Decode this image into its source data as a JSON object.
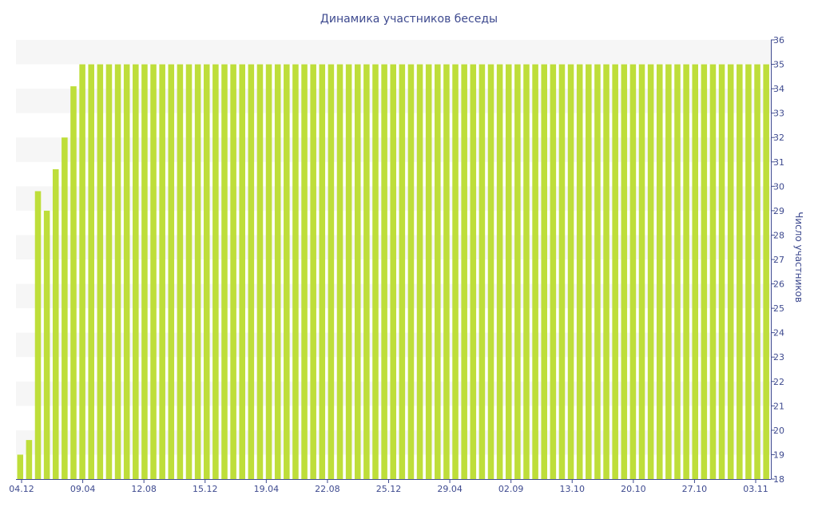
{
  "chart_data": {
    "type": "bar",
    "title": "Динамика участников беседы",
    "xlabel": "",
    "ylabel": "Число участников",
    "ylim": [
      18,
      36
    ],
    "y_ticks": [
      18,
      19,
      20,
      21,
      22,
      23,
      24,
      25,
      26,
      27,
      28,
      29,
      30,
      31,
      32,
      33,
      34,
      35,
      36
    ],
    "x_tick_labels": [
      "04.12",
      "09.04",
      "12.08",
      "15.12",
      "19.04",
      "22.08",
      "25.12",
      "29.04",
      "02.09",
      "13.10",
      "20.10",
      "27.10",
      "03.11"
    ],
    "y_axis_position": "right",
    "grid": "alternating horizontal bands",
    "bar_color": "#bede3a",
    "band_color": "#f6f6f6",
    "values": [
      19,
      19.6,
      29.8,
      29,
      30.7,
      32,
      34.1,
      35,
      35,
      35,
      35,
      35,
      35,
      35,
      35,
      35,
      35,
      35,
      35,
      35,
      35,
      35,
      35,
      35,
      35,
      35,
      35,
      35,
      35,
      35,
      35,
      35,
      35,
      35,
      35,
      35,
      35,
      35,
      35,
      35,
      35,
      35,
      35,
      35,
      35,
      35,
      35,
      35,
      35,
      35,
      35,
      35,
      35,
      35,
      35,
      35,
      35,
      35,
      35,
      35,
      35,
      35,
      35,
      35,
      35,
      35,
      35,
      35,
      35,
      35,
      35,
      35,
      35,
      35,
      35,
      35,
      35,
      35,
      35,
      35,
      35,
      35,
      35,
      35,
      35
    ]
  }
}
